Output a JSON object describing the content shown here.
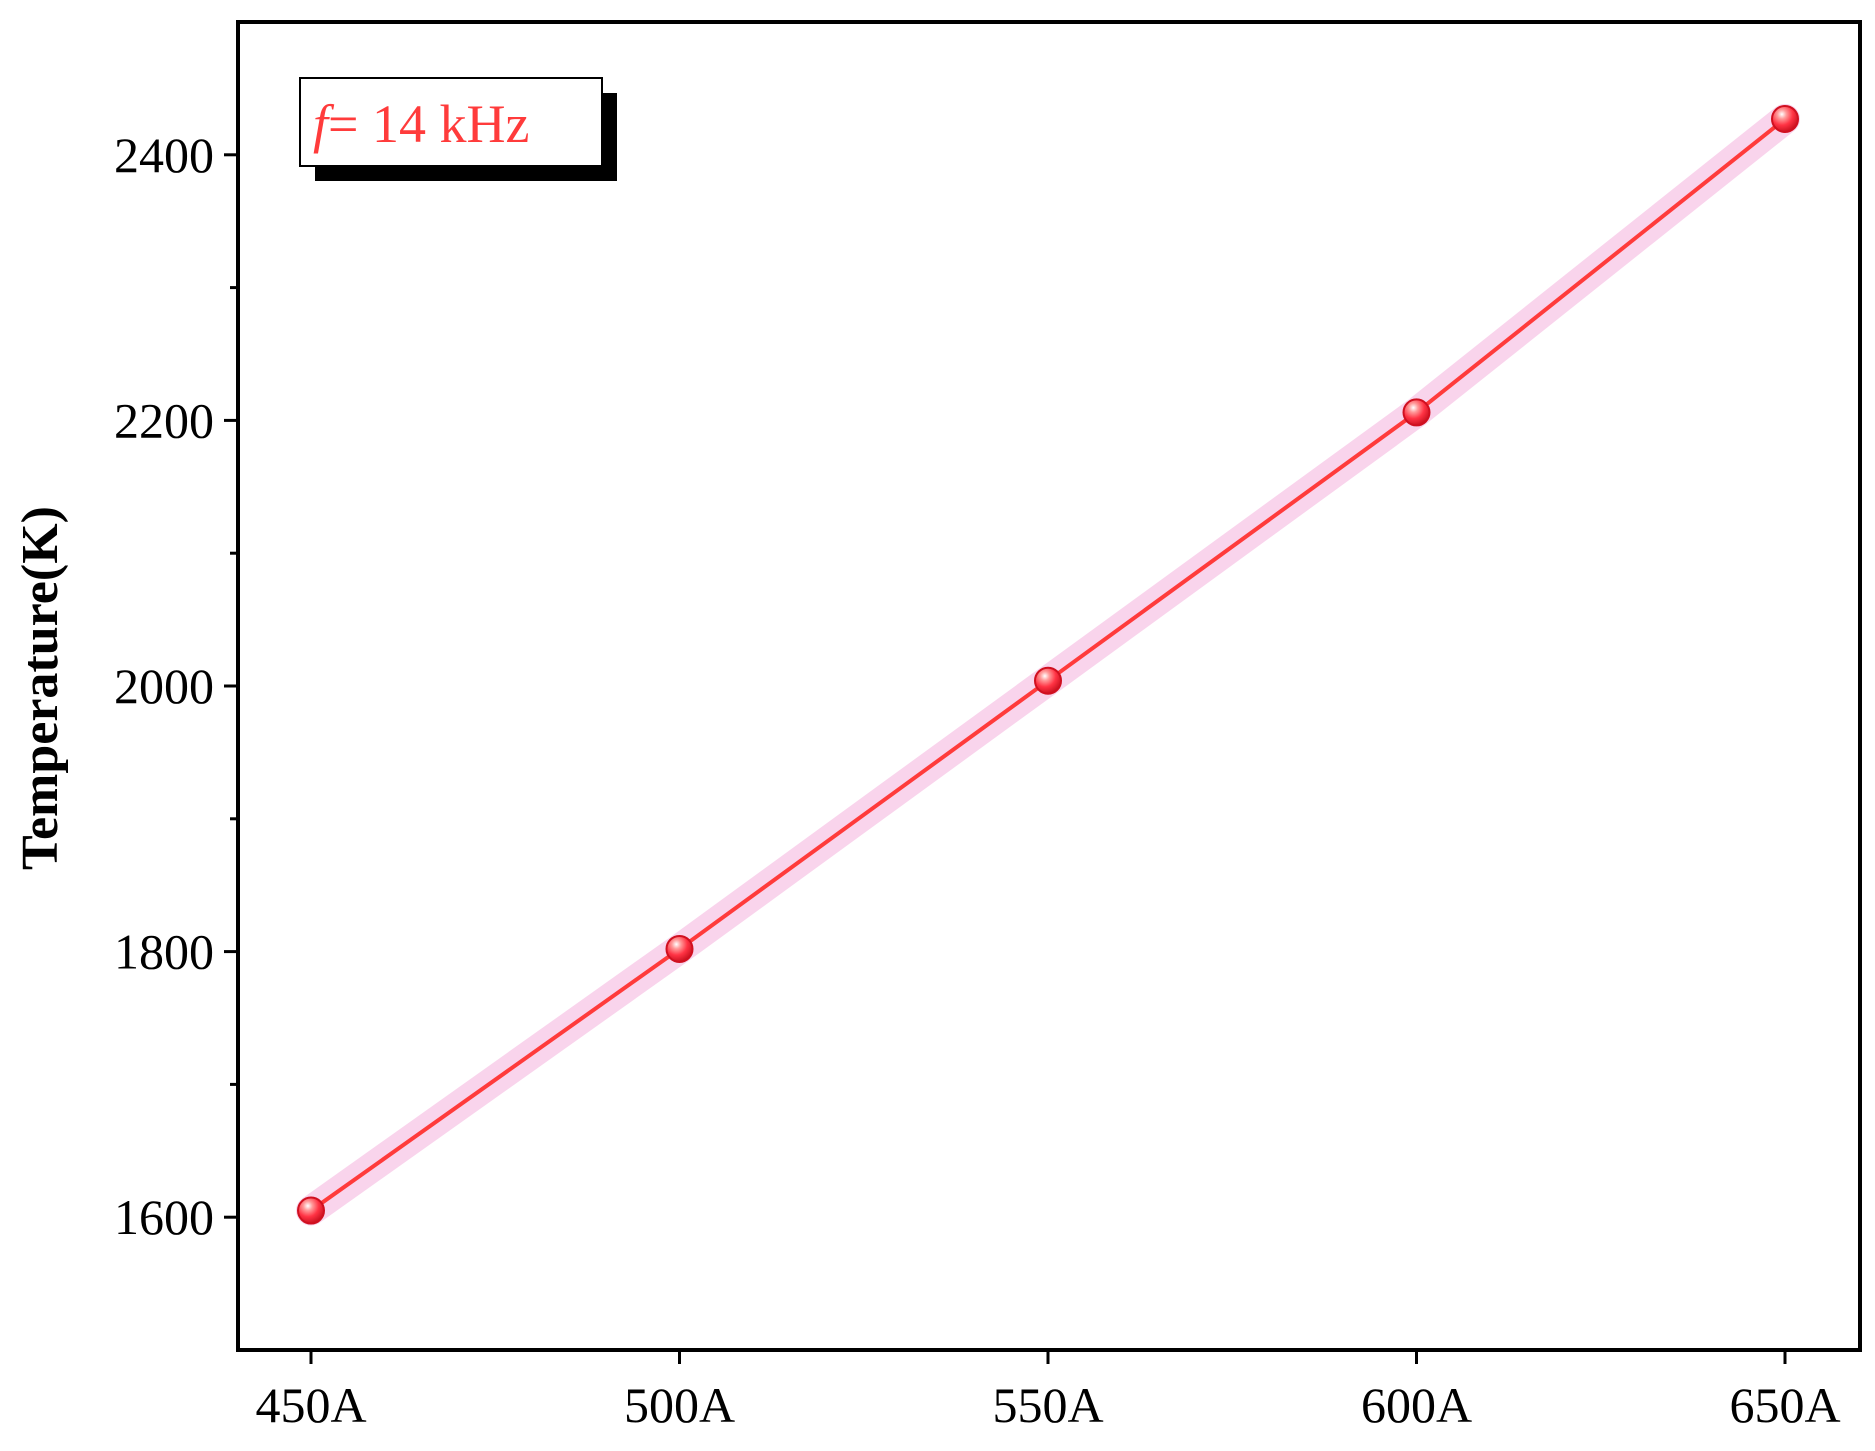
{
  "chart_data": {
    "type": "line",
    "title": "",
    "xlabel": "",
    "ylabel": "Temperature(K)",
    "categories": [
      "450A",
      "500A",
      "550A",
      "600A",
      "650A"
    ],
    "series": [
      {
        "values": [
          1605,
          1802,
          2004,
          2206,
          2427
        ]
      }
    ],
    "ylim": [
      1500,
      2500
    ],
    "yticks": [
      1600,
      1800,
      2000,
      2200,
      2400
    ],
    "ytick_labels": [
      "1600",
      "1800",
      "2000",
      "2200",
      "2400"
    ],
    "grid": false,
    "legend": {
      "placement": "top-left",
      "italic_part": "f",
      "text_part": "= 14 kHz"
    },
    "colors": {
      "line": "#ff3b3b",
      "band": "#f7c6e6",
      "marker": "#ff3344",
      "legend_text": "#ff3b3b",
      "axis": "#000000"
    }
  }
}
